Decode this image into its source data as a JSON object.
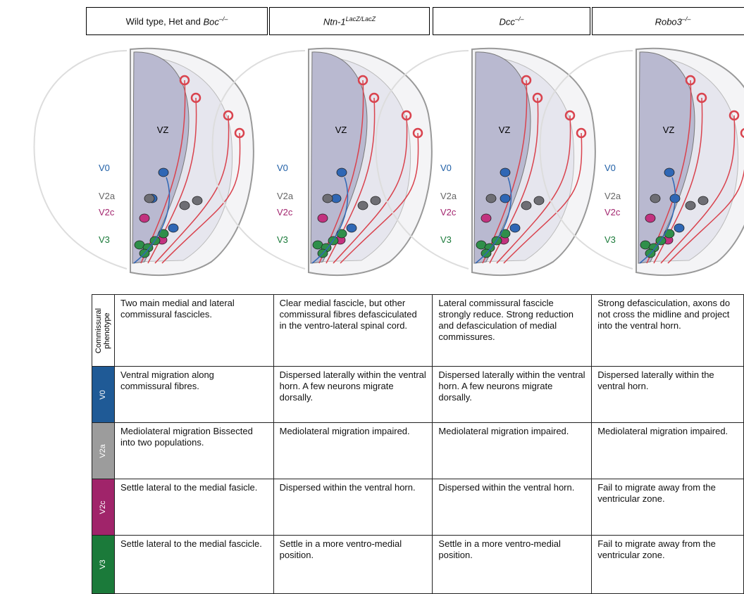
{
  "headers": [
    {
      "prefix": "Wild type, Het and ",
      "name": "Boc",
      "sup": "–/–"
    },
    {
      "name": "Ntn-1",
      "sup": "LacZ/LacZ"
    },
    {
      "name": "Dcc",
      "sup": "–/–"
    },
    {
      "name": "Robo3",
      "sup": "–/–"
    }
  ],
  "diagram_labels": {
    "vz": "VZ",
    "populations": [
      {
        "name": "V0",
        "color": "#1f5fa6"
      },
      {
        "name": "V2a",
        "color": "#666666"
      },
      {
        "name": "V2c",
        "color": "#a3266f"
      },
      {
        "name": "V3",
        "color": "#1b7a3a"
      }
    ]
  },
  "table": {
    "row_headers": [
      {
        "text": "Commissural phenotype",
        "color": "#ffffff"
      },
      {
        "text": "V0",
        "color": "#1f5a96"
      },
      {
        "text": "V2a",
        "color": "#9c9c9c"
      },
      {
        "text": "V2c",
        "color": "#a0246a"
      },
      {
        "text": "V3",
        "color": "#1b7a3a"
      }
    ],
    "rows": [
      [
        "Two main medial and lateral commissural fascicles.",
        "Clear medial fascicle, but other commissural fibres defasciculated in the ventro-lateral spinal cord.",
        "Lateral commissural fascicle strongly reduce. Strong reduction and defasciculation of medial commissures.",
        "Strong defasciculation, axons do not cross the midline and project into the ventral horn."
      ],
      [
        "Ventral migration along commissural fibres.",
        "Dispersed laterally within the ventral horn. A few neurons migrate dorsally.",
        "Dispersed laterally within the ventral horn. A few neurons migrate dorsally.",
        "Dispersed laterally within the ventral horn."
      ],
      [
        "Mediolateral migration Bissected into two populations.",
        "Mediolateral migration impaired.",
        "Mediolateral migration impaired.",
        "Mediolateral migration impaired."
      ],
      [
        "Settle lateral to the medial fasicle.",
        "Dispersed within the ventral horn.",
        "Dispersed within the ventral horn.",
        "Fail to migrate away from the ventricular zone."
      ],
      [
        "Settle lateral to the medial fascicle.",
        "Settle in a more ventro-medial position.",
        "Settle in a more ventro-medial position.",
        "Fail to migrate away from the ventricular zone."
      ]
    ]
  }
}
